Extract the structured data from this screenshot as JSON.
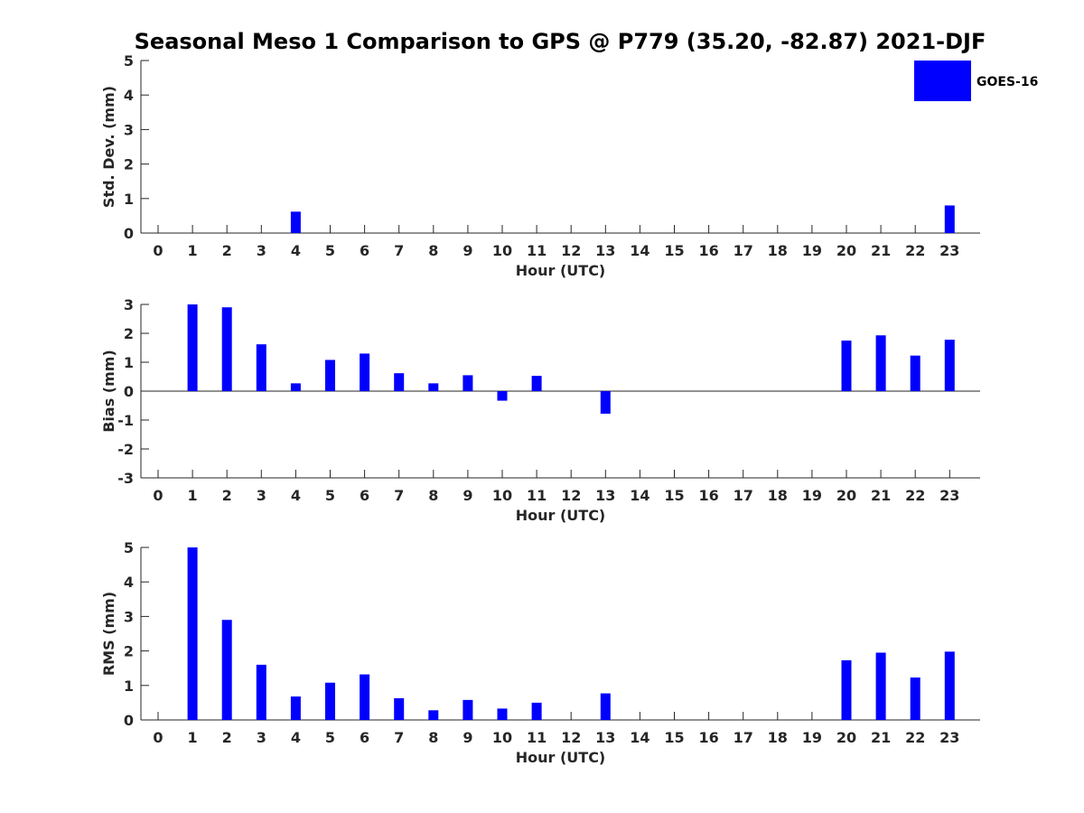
{
  "title": "Seasonal Meso 1 Comparison to GPS @ P779 (35.20, -82.87) 2021-DJF",
  "legend": {
    "label": "GOES-16",
    "color": "#0000ff",
    "placement": "top-right"
  },
  "chart_data": [
    {
      "type": "bar",
      "name": "std-dev",
      "categories": [
        "0",
        "1",
        "2",
        "3",
        "4",
        "5",
        "6",
        "7",
        "8",
        "9",
        "10",
        "11",
        "12",
        "13",
        "14",
        "15",
        "16",
        "17",
        "18",
        "19",
        "20",
        "21",
        "22",
        "23"
      ],
      "series": [
        {
          "name": "GOES-16",
          "color": "#0000ff",
          "values": [
            null,
            null,
            null,
            null,
            0.62,
            null,
            null,
            null,
            null,
            null,
            null,
            null,
            null,
            null,
            null,
            null,
            null,
            null,
            null,
            null,
            null,
            null,
            null,
            0.8
          ]
        }
      ],
      "xlabel": "Hour (UTC)",
      "ylabel": "Std. Dev. (mm)",
      "ylim": [
        0,
        5
      ],
      "yticks": [
        "0",
        "1",
        "2",
        "3",
        "4",
        "5"
      ],
      "grid": false
    },
    {
      "type": "bar",
      "name": "bias",
      "categories": [
        "0",
        "1",
        "2",
        "3",
        "4",
        "5",
        "6",
        "7",
        "8",
        "9",
        "10",
        "11",
        "12",
        "13",
        "14",
        "15",
        "16",
        "17",
        "18",
        "19",
        "20",
        "21",
        "22",
        "23"
      ],
      "series": [
        {
          "name": "GOES-16",
          "color": "#0000ff",
          "values": [
            null,
            3.0,
            2.9,
            1.62,
            0.27,
            1.08,
            1.3,
            0.62,
            0.27,
            0.55,
            -0.33,
            0.53,
            null,
            -0.78,
            null,
            null,
            null,
            null,
            null,
            null,
            1.75,
            1.93,
            1.23,
            1.78
          ]
        }
      ],
      "xlabel": "Hour (UTC)",
      "ylabel": "Bias (mm)",
      "ylim": [
        -3,
        3
      ],
      "yticks": [
        "-3",
        "-2",
        "-1",
        "0",
        "1",
        "2",
        "3"
      ],
      "zero_line": true,
      "grid": false
    },
    {
      "type": "bar",
      "name": "rms",
      "categories": [
        "0",
        "1",
        "2",
        "3",
        "4",
        "5",
        "6",
        "7",
        "8",
        "9",
        "10",
        "11",
        "12",
        "13",
        "14",
        "15",
        "16",
        "17",
        "18",
        "19",
        "20",
        "21",
        "22",
        "23"
      ],
      "series": [
        {
          "name": "GOES-16",
          "color": "#0000ff",
          "values": [
            null,
            5.0,
            2.9,
            1.6,
            0.68,
            1.08,
            1.32,
            0.63,
            0.28,
            0.58,
            0.33,
            0.5,
            null,
            0.77,
            null,
            null,
            null,
            null,
            null,
            null,
            1.73,
            1.95,
            1.23,
            1.98
          ]
        }
      ],
      "xlabel": "Hour (UTC)",
      "ylabel": "RMS (mm)",
      "ylim": [
        0,
        5
      ],
      "yticks": [
        "0",
        "1",
        "2",
        "3",
        "4",
        "5"
      ],
      "grid": false
    }
  ]
}
